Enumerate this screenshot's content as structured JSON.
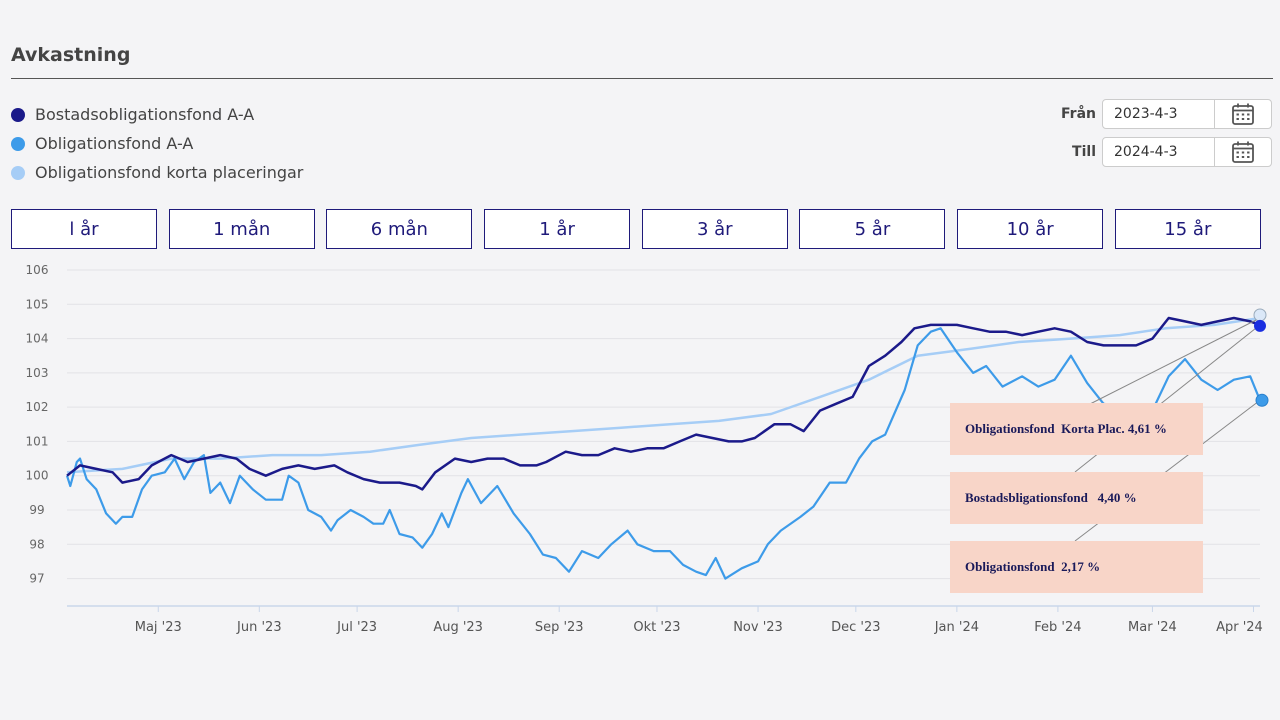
{
  "header": {
    "title": "Avkastning"
  },
  "legend": [
    {
      "label": "Bostadsobligationsfond A-A",
      "color": "#1b1a8a"
    },
    {
      "label": "Obligationsfond A-A",
      "color": "#3d9be9"
    },
    {
      "label": "Obligationsfond korta placeringar",
      "color": "#a6cdf6"
    }
  ],
  "date_range": {
    "from_label": "Från",
    "from_value": "2023-4-3",
    "to_label": "Till",
    "to_value": "2024-4-3",
    "calendar_icon": "calendar-icon"
  },
  "periods": [
    "l år",
    "1 mån",
    "6 mån",
    "1 år",
    "3 år",
    "5 år",
    "10 år",
    "15 år"
  ],
  "annotations": [
    "Obligationsfond  Korta Plac. 4,61 %",
    "Bostadsbligationsfond   4,40 %",
    "Obligationsfond  2,17 %"
  ],
  "chart_data": {
    "type": "line",
    "ylim": [
      96.2,
      106
    ],
    "yticks": [
      106,
      105,
      104,
      103,
      102,
      101,
      100,
      99,
      98,
      97
    ],
    "xlabels": [
      "Maj '23",
      "Jun '23",
      "Jul '23",
      "Aug '23",
      "Sep '23",
      "Okt '23",
      "Nov '23",
      "Dec '23",
      "Jan '24",
      "Feb '24",
      "Mar '24",
      "Apr '24"
    ],
    "xlim": [
      "2023-04-03",
      "2024-04-03"
    ],
    "grid": true,
    "legend_position": "top-left",
    "series": [
      {
        "name": "Bostadsobligationsfond A-A",
        "color": "#1b1a8a",
        "stroke": 2.5,
        "points": [
          [
            "2023-04-03",
            100.0
          ],
          [
            "2023-04-07",
            100.3
          ],
          [
            "2023-04-12",
            100.2
          ],
          [
            "2023-04-17",
            100.1
          ],
          [
            "2023-04-20",
            99.8
          ],
          [
            "2023-04-25",
            99.9
          ],
          [
            "2023-04-29",
            100.3
          ],
          [
            "2023-05-05",
            100.6
          ],
          [
            "2023-05-10",
            100.4
          ],
          [
            "2023-05-15",
            100.5
          ],
          [
            "2023-05-20",
            100.6
          ],
          [
            "2023-05-25",
            100.5
          ],
          [
            "2023-05-29",
            100.2
          ],
          [
            "2023-06-03",
            100.0
          ],
          [
            "2023-06-08",
            100.2
          ],
          [
            "2023-06-13",
            100.3
          ],
          [
            "2023-06-18",
            100.2
          ],
          [
            "2023-06-24",
            100.3
          ],
          [
            "2023-06-28",
            100.1
          ],
          [
            "2023-07-03",
            99.9
          ],
          [
            "2023-07-08",
            99.8
          ],
          [
            "2023-07-14",
            99.8
          ],
          [
            "2023-07-19",
            99.7
          ],
          [
            "2023-07-21",
            99.6
          ],
          [
            "2023-07-25",
            100.1
          ],
          [
            "2023-07-31",
            100.5
          ],
          [
            "2023-08-05",
            100.4
          ],
          [
            "2023-08-10",
            100.5
          ],
          [
            "2023-08-15",
            100.5
          ],
          [
            "2023-08-20",
            100.3
          ],
          [
            "2023-08-25",
            100.3
          ],
          [
            "2023-08-28",
            100.4
          ],
          [
            "2023-09-03",
            100.7
          ],
          [
            "2023-09-08",
            100.6
          ],
          [
            "2023-09-13",
            100.6
          ],
          [
            "2023-09-18",
            100.8
          ],
          [
            "2023-09-23",
            100.7
          ],
          [
            "2023-09-28",
            100.8
          ],
          [
            "2023-10-03",
            100.8
          ],
          [
            "2023-10-08",
            101.0
          ],
          [
            "2023-10-13",
            101.2
          ],
          [
            "2023-10-18",
            101.1
          ],
          [
            "2023-10-23",
            101.0
          ],
          [
            "2023-10-27",
            101.0
          ],
          [
            "2023-10-31",
            101.1
          ],
          [
            "2023-11-06",
            101.5
          ],
          [
            "2023-11-11",
            101.5
          ],
          [
            "2023-11-15",
            101.3
          ],
          [
            "2023-11-20",
            101.9
          ],
          [
            "2023-11-25",
            102.1
          ],
          [
            "2023-11-30",
            102.3
          ],
          [
            "2023-12-05",
            103.2
          ],
          [
            "2023-12-10",
            103.5
          ],
          [
            "2023-12-15",
            103.9
          ],
          [
            "2023-12-19",
            104.3
          ],
          [
            "2023-12-24",
            104.4
          ],
          [
            "2023-12-28",
            104.4
          ],
          [
            "2024-01-01",
            104.4
          ],
          [
            "2024-01-06",
            104.3
          ],
          [
            "2024-01-11",
            104.2
          ],
          [
            "2024-01-16",
            104.2
          ],
          [
            "2024-01-21",
            104.1
          ],
          [
            "2024-01-26",
            104.2
          ],
          [
            "2024-01-31",
            104.3
          ],
          [
            "2024-02-05",
            104.2
          ],
          [
            "2024-02-10",
            103.9
          ],
          [
            "2024-02-15",
            103.8
          ],
          [
            "2024-02-20",
            103.8
          ],
          [
            "2024-02-25",
            103.8
          ],
          [
            "2024-03-01",
            104.0
          ],
          [
            "2024-03-06",
            104.6
          ],
          [
            "2024-03-11",
            104.5
          ],
          [
            "2024-03-16",
            104.4
          ],
          [
            "2024-03-21",
            104.5
          ],
          [
            "2024-03-26",
            104.6
          ],
          [
            "2024-03-31",
            104.5
          ],
          [
            "2024-04-03",
            104.4
          ]
        ]
      },
      {
        "name": "Obligationsfond A-A",
        "color": "#3d9be9",
        "stroke": 2.2,
        "points": [
          [
            "2023-04-03",
            100.0
          ],
          [
            "2023-04-04",
            99.7
          ],
          [
            "2023-04-06",
            100.4
          ],
          [
            "2023-04-07",
            100.5
          ],
          [
            "2023-04-09",
            99.9
          ],
          [
            "2023-04-12",
            99.6
          ],
          [
            "2023-04-15",
            98.9
          ],
          [
            "2023-04-18",
            98.6
          ],
          [
            "2023-04-20",
            98.8
          ],
          [
            "2023-04-23",
            98.8
          ],
          [
            "2023-04-26",
            99.6
          ],
          [
            "2023-04-29",
            100.0
          ],
          [
            "2023-05-03",
            100.1
          ],
          [
            "2023-05-06",
            100.5
          ],
          [
            "2023-05-09",
            99.9
          ],
          [
            "2023-05-12",
            100.4
          ],
          [
            "2023-05-15",
            100.6
          ],
          [
            "2023-05-17",
            99.5
          ],
          [
            "2023-05-20",
            99.8
          ],
          [
            "2023-05-23",
            99.2
          ],
          [
            "2023-05-26",
            100.0
          ],
          [
            "2023-05-30",
            99.6
          ],
          [
            "2023-06-03",
            99.3
          ],
          [
            "2023-06-08",
            99.3
          ],
          [
            "2023-06-10",
            100.0
          ],
          [
            "2023-06-13",
            99.8
          ],
          [
            "2023-06-16",
            99.0
          ],
          [
            "2023-06-20",
            98.8
          ],
          [
            "2023-06-23",
            98.4
          ],
          [
            "2023-06-25",
            98.7
          ],
          [
            "2023-06-29",
            99.0
          ],
          [
            "2023-07-03",
            98.8
          ],
          [
            "2023-07-06",
            98.6
          ],
          [
            "2023-07-09",
            98.6
          ],
          [
            "2023-07-11",
            99.0
          ],
          [
            "2023-07-14",
            98.3
          ],
          [
            "2023-07-18",
            98.2
          ],
          [
            "2023-07-21",
            97.9
          ],
          [
            "2023-07-24",
            98.3
          ],
          [
            "2023-07-27",
            98.9
          ],
          [
            "2023-07-29",
            98.5
          ],
          [
            "2023-08-02",
            99.5
          ],
          [
            "2023-08-04",
            99.9
          ],
          [
            "2023-08-08",
            99.2
          ],
          [
            "2023-08-13",
            99.7
          ],
          [
            "2023-08-18",
            98.9
          ],
          [
            "2023-08-23",
            98.3
          ],
          [
            "2023-08-27",
            97.7
          ],
          [
            "2023-08-31",
            97.6
          ],
          [
            "2023-09-04",
            97.2
          ],
          [
            "2023-09-08",
            97.8
          ],
          [
            "2023-09-13",
            97.6
          ],
          [
            "2023-09-17",
            98.0
          ],
          [
            "2023-09-22",
            98.4
          ],
          [
            "2023-09-25",
            98.0
          ],
          [
            "2023-09-30",
            97.8
          ],
          [
            "2023-10-05",
            97.8
          ],
          [
            "2023-10-09",
            97.4
          ],
          [
            "2023-10-13",
            97.2
          ],
          [
            "2023-10-16",
            97.1
          ],
          [
            "2023-10-19",
            97.6
          ],
          [
            "2023-10-22",
            97.0
          ],
          [
            "2023-10-27",
            97.3
          ],
          [
            "2023-11-01",
            97.5
          ],
          [
            "2023-11-04",
            98.0
          ],
          [
            "2023-11-08",
            98.4
          ],
          [
            "2023-11-14",
            98.8
          ],
          [
            "2023-11-18",
            99.1
          ],
          [
            "2023-11-23",
            99.8
          ],
          [
            "2023-11-28",
            99.8
          ],
          [
            "2023-12-02",
            100.5
          ],
          [
            "2023-12-06",
            101.0
          ],
          [
            "2023-12-10",
            101.2
          ],
          [
            "2023-12-16",
            102.5
          ],
          [
            "2023-12-20",
            103.8
          ],
          [
            "2023-12-24",
            104.2
          ],
          [
            "2023-12-27",
            104.3
          ],
          [
            "2024-01-01",
            103.6
          ],
          [
            "2024-01-06",
            103.0
          ],
          [
            "2024-01-10",
            103.2
          ],
          [
            "2024-01-15",
            102.6
          ],
          [
            "2024-01-21",
            102.9
          ],
          [
            "2024-01-26",
            102.6
          ],
          [
            "2024-01-31",
            102.8
          ],
          [
            "2024-02-05",
            103.5
          ],
          [
            "2024-02-10",
            102.7
          ],
          [
            "2024-02-15",
            102.1
          ],
          [
            "2024-02-20",
            102.0
          ],
          [
            "2024-02-25",
            101.8
          ],
          [
            "2024-03-01",
            101.9
          ],
          [
            "2024-03-06",
            102.9
          ],
          [
            "2024-03-11",
            103.4
          ],
          [
            "2024-03-16",
            102.8
          ],
          [
            "2024-03-21",
            102.5
          ],
          [
            "2024-03-26",
            102.8
          ],
          [
            "2024-03-31",
            102.9
          ],
          [
            "2024-04-03",
            102.2
          ]
        ]
      },
      {
        "name": "Obligationsfond korta placeringar",
        "color": "#a6cdf6",
        "stroke": 2.5,
        "points": [
          [
            "2023-04-03",
            100.1
          ],
          [
            "2023-04-20",
            100.2
          ],
          [
            "2023-05-05",
            100.5
          ],
          [
            "2023-05-20",
            100.5
          ],
          [
            "2023-06-05",
            100.6
          ],
          [
            "2023-06-20",
            100.6
          ],
          [
            "2023-07-05",
            100.7
          ],
          [
            "2023-07-20",
            100.9
          ],
          [
            "2023-08-05",
            101.1
          ],
          [
            "2023-08-20",
            101.2
          ],
          [
            "2023-09-05",
            101.3
          ],
          [
            "2023-09-20",
            101.4
          ],
          [
            "2023-10-05",
            101.5
          ],
          [
            "2023-10-20",
            101.6
          ],
          [
            "2023-11-05",
            101.8
          ],
          [
            "2023-11-20",
            102.3
          ],
          [
            "2023-12-05",
            102.8
          ],
          [
            "2023-12-20",
            103.5
          ],
          [
            "2024-01-05",
            103.7
          ],
          [
            "2024-01-20",
            103.9
          ],
          [
            "2024-02-05",
            104.0
          ],
          [
            "2024-02-20",
            104.1
          ],
          [
            "2024-03-05",
            104.3
          ],
          [
            "2024-03-20",
            104.4
          ],
          [
            "2024-04-03",
            104.6
          ]
        ]
      }
    ]
  }
}
